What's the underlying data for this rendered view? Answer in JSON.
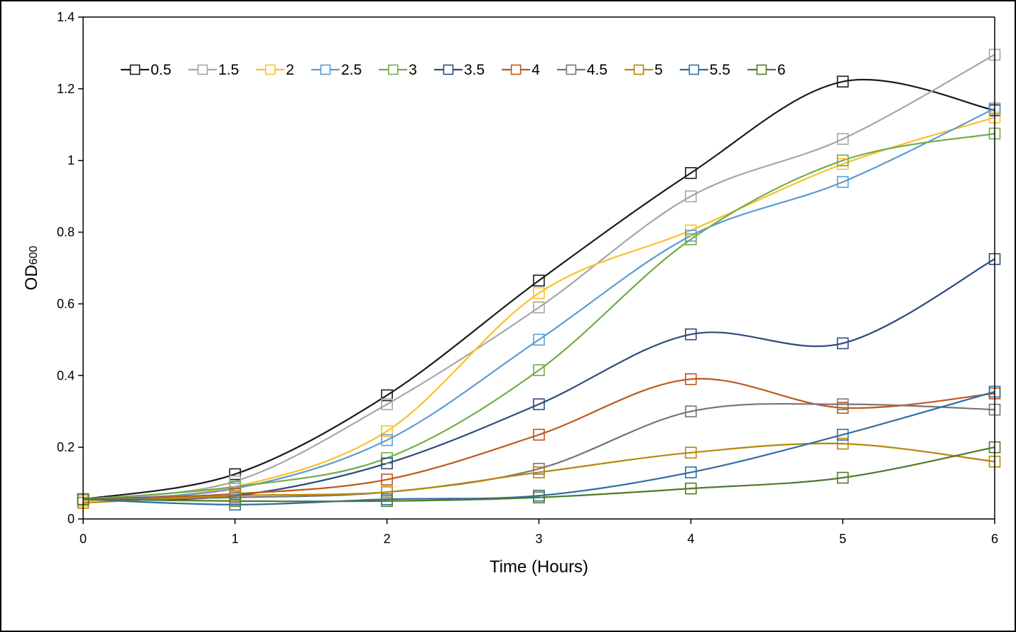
{
  "chart_data": {
    "type": "line",
    "title": "",
    "xlabel": "Time (Hours)",
    "ylabel_main": "OD",
    "ylabel_sub": "600",
    "x": [
      0,
      1,
      2,
      3,
      4,
      5,
      6
    ],
    "xlim": [
      0,
      6
    ],
    "ylim": [
      0,
      1.4
    ],
    "xticks": [
      "0",
      "1",
      "2",
      "3",
      "4",
      "5",
      "6"
    ],
    "yticks": [
      "0",
      "0.2",
      "0.4",
      "0.6",
      "0.8",
      "1",
      "1.2",
      "1.4"
    ],
    "ytick_values": [
      0,
      0.2,
      0.4,
      0.6,
      0.8,
      1.0,
      1.2,
      1.4
    ],
    "grid": false,
    "legend_position": "top-left",
    "marker": "open-square",
    "smooth": true,
    "series": [
      {
        "name": "0.5",
        "color": "#1a1a1a",
        "values": [
          0.055,
          0.125,
          0.345,
          0.665,
          0.965,
          1.22,
          1.14
        ]
      },
      {
        "name": "1.5",
        "color": "#a6a6a6",
        "values": [
          0.055,
          0.105,
          0.32,
          0.59,
          0.9,
          1.06,
          1.295
        ]
      },
      {
        "name": "2",
        "color": "#fbc02d",
        "values": [
          0.05,
          0.09,
          0.245,
          0.63,
          0.805,
          0.99,
          1.12
        ]
      },
      {
        "name": "2.5",
        "color": "#5b9bd5",
        "values": [
          0.055,
          0.085,
          0.22,
          0.5,
          0.79,
          0.94,
          1.145
        ]
      },
      {
        "name": "3",
        "color": "#70ad47",
        "values": [
          0.055,
          0.09,
          0.17,
          0.415,
          0.78,
          1.0,
          1.075
        ]
      },
      {
        "name": "3.5",
        "color": "#2f4b7c",
        "values": [
          0.055,
          0.065,
          0.155,
          0.32,
          0.515,
          0.49,
          0.725
        ]
      },
      {
        "name": "4",
        "color": "#c0561d",
        "values": [
          0.055,
          0.07,
          0.11,
          0.235,
          0.39,
          0.31,
          0.35
        ]
      },
      {
        "name": "4.5",
        "color": "#767676",
        "values": [
          0.055,
          0.06,
          0.075,
          0.14,
          0.3,
          0.32,
          0.305
        ]
      },
      {
        "name": "5",
        "color": "#b8860b",
        "values": [
          0.045,
          0.065,
          0.075,
          0.13,
          0.185,
          0.21,
          0.16
        ]
      },
      {
        "name": "5.5",
        "color": "#2e6da4",
        "values": [
          0.055,
          0.04,
          0.055,
          0.065,
          0.13,
          0.235,
          0.355
        ]
      },
      {
        "name": "6",
        "color": "#4f7a2a",
        "values": [
          0.055,
          0.05,
          0.05,
          0.06,
          0.085,
          0.115,
          0.2
        ]
      }
    ]
  }
}
